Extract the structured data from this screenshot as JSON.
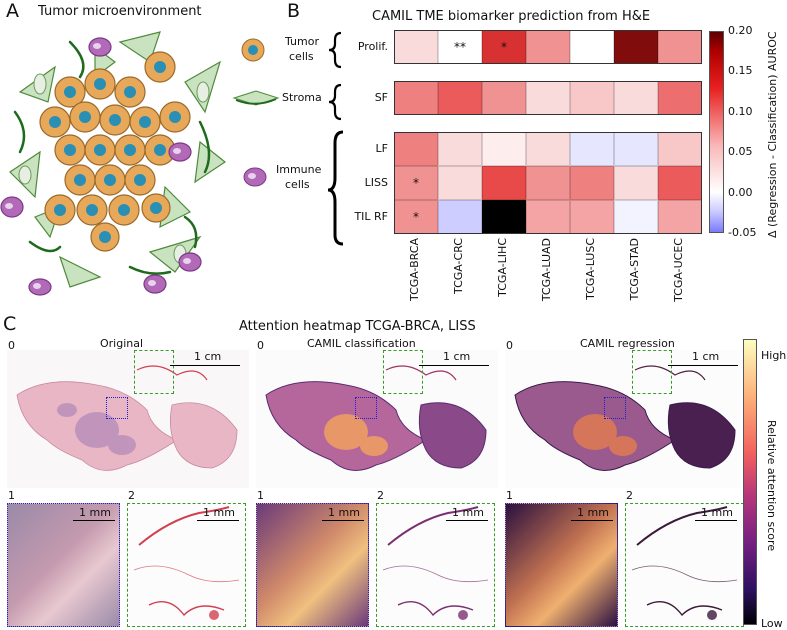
{
  "panelA": {
    "letter": "A",
    "title": "Tumor microenvironment"
  },
  "panelB": {
    "letter": "B",
    "title": "CAMIL TME biomarker prediction from H&E",
    "legend": {
      "tumor": "Tumor\ncells",
      "tumor_line1": "Tumor",
      "tumor_line2": "cells",
      "stroma": "Stroma",
      "immune_line1": "Immune",
      "immune_line2": "cells"
    },
    "colorbar": {
      "label": "Δ (Regression - Classification) AUROC",
      "ticks": [
        "0.20",
        "0.15",
        "0.10",
        "0.05",
        "0.00",
        "-0.05"
      ],
      "min": -0.05,
      "max": 0.2
    }
  },
  "chart_data": {
    "type": "heatmap",
    "title": "CAMIL TME biomarker prediction from H&E",
    "columns": [
      "TCGA-BRCA",
      "TCGA-CRC",
      "TCGA-LIHC",
      "TCGA-LUAD",
      "TCGA-LUSC",
      "TCGA-STAD",
      "TCGA-UCEC"
    ],
    "groups": [
      {
        "rows": [
          "Prolif."
        ]
      },
      {
        "rows": [
          "SF"
        ]
      },
      {
        "rows": [
          "LF",
          "LISS",
          "TIL RF"
        ]
      }
    ],
    "rows": [
      "Prolif.",
      "SF",
      "LF",
      "LISS",
      "TIL RF"
    ],
    "values": [
      [
        0.02,
        0.0,
        0.12,
        0.06,
        0.0,
        0.18,
        0.06
      ],
      [
        0.07,
        0.09,
        0.06,
        0.02,
        0.03,
        0.02,
        0.08
      ],
      [
        0.07,
        0.02,
        0.01,
        0.02,
        -0.01,
        -0.01,
        0.03
      ],
      [
        0.06,
        0.02,
        0.1,
        0.06,
        0.07,
        0.02,
        0.09
      ],
      [
        0.06,
        -0.02,
        0.25,
        0.05,
        0.05,
        -0.005,
        0.05
      ]
    ],
    "annotations": [
      {
        "row": "Prolif.",
        "col": "TCGA-CRC",
        "text": "**"
      },
      {
        "row": "Prolif.",
        "col": "TCGA-LIHC",
        "text": "*"
      },
      {
        "row": "LISS",
        "col": "TCGA-BRCA",
        "text": "*"
      },
      {
        "row": "TIL RF",
        "col": "TCGA-BRCA",
        "text": "*"
      }
    ],
    "vmin": -0.05,
    "vmax": 0.2,
    "colorbar_label": "Δ (Regression - Classification) AUROC"
  },
  "panelC": {
    "letter": "C",
    "title": "Attention heatmap TCGA-BRCA, LISS",
    "columns": [
      {
        "index": "0",
        "title": "Original"
      },
      {
        "index": "0",
        "title": "CAMIL classification"
      },
      {
        "index": "0",
        "title": "CAMIL regression"
      }
    ],
    "scale_large": "1 cm",
    "scale_small": "1 mm",
    "inset_index_1": "1",
    "inset_index_2": "2",
    "colorbar": {
      "high": "High",
      "low": "Low",
      "label": "Relative attention score"
    }
  }
}
